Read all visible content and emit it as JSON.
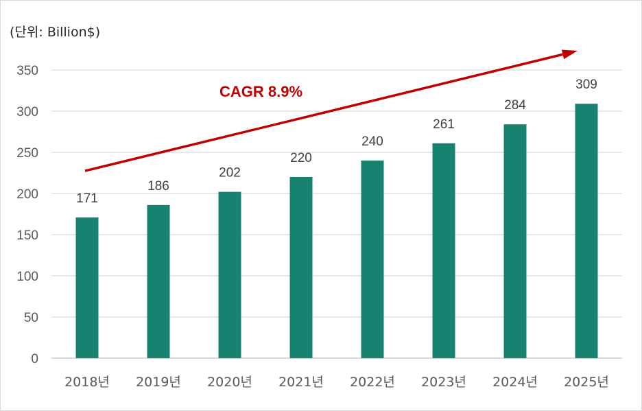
{
  "unit_label": "(단위: Billion$)",
  "colors": {
    "bar": "#178270",
    "arrow": "#c00000",
    "grid": "#d9d9d9"
  },
  "chart_data": {
    "type": "bar",
    "title": "",
    "xlabel": "",
    "ylabel": "(단위: Billion$)",
    "categories": [
      "2018년",
      "2019년",
      "2020년",
      "2021년",
      "2022년",
      "2023년",
      "2024년",
      "2025년"
    ],
    "values": [
      171,
      186,
      202,
      220,
      240,
      261,
      284,
      309
    ],
    "ylim": [
      0,
      350
    ],
    "yticks": [
      0,
      50,
      100,
      150,
      200,
      250,
      300,
      350
    ],
    "grid": true,
    "annotation": {
      "text": "CAGR 8.9%",
      "type": "trend-arrow"
    }
  }
}
